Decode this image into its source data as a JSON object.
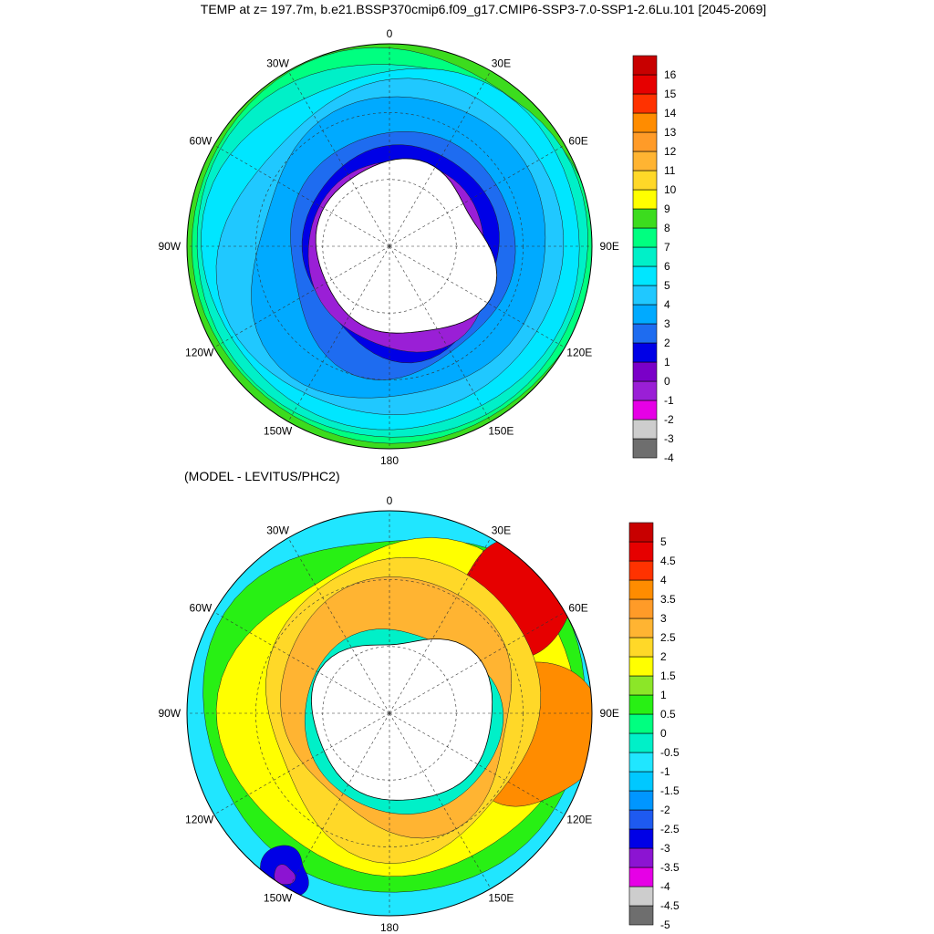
{
  "figure": {
    "title": "TEMP at z= 197.7m, b.e21.BSSP370cmip6.f09_g17.CMIP6-SSP3-7.0-SSP1-2.6Lu.101 [2045-2069]",
    "subtitle": "(MODEL - LEVITUS/PHC2)"
  },
  "chart_data": [
    {
      "type": "heatmap",
      "projection": "south-polar-stereographic",
      "variable": "TEMP",
      "depth": "z= 197.7m",
      "period": "[2045-2069]",
      "longitude_labels": [
        "0",
        "30E",
        "60E",
        "90E",
        "120E",
        "150E",
        "180",
        "150W",
        "120W",
        "90W",
        "60W",
        "30W"
      ],
      "colorbar": {
        "levels": [
          "-4",
          "-3",
          "-2",
          "-1",
          "0",
          "1",
          "2",
          "3",
          "4",
          "5",
          "6",
          "7",
          "8",
          "9",
          "10",
          "11",
          "12",
          "13",
          "14",
          "15",
          "16"
        ],
        "colors": [
          "#6e6e6e",
          "#cdcdcd",
          "#e600e6",
          "#9a1fd6",
          "#7a00c8",
          "#0000e6",
          "#1e6cf0",
          "#00aaff",
          "#20c8ff",
          "#00e6ff",
          "#00f0c8",
          "#00ff80",
          "#3cdc1e",
          "#ffff00",
          "#ffd828",
          "#ffb432",
          "#ff9b28",
          "#ff8c00",
          "#ff3200",
          "#e60000",
          "#c80000"
        ]
      },
      "regions": [
        {
          "name": "continent",
          "color": "#ffffff"
        },
        {
          "name": "shelf",
          "color": "#0000e6"
        },
        {
          "name": "shelf-cold",
          "color": "#9a1fd6"
        },
        {
          "name": "ring-2",
          "color": "#1e6cf0"
        },
        {
          "name": "ring-3",
          "color": "#00aaff"
        },
        {
          "name": "ring-4",
          "color": "#20c8ff"
        },
        {
          "name": "ring-5",
          "color": "#00e6ff"
        },
        {
          "name": "ring-6",
          "color": "#00f0c8"
        },
        {
          "name": "ring-7",
          "color": "#00ff80"
        },
        {
          "name": "ring-8",
          "color": "#3cdc1e"
        }
      ]
    },
    {
      "type": "heatmap",
      "projection": "south-polar-stereographic",
      "variable": "TEMP difference",
      "longitude_labels": [
        "0",
        "30E",
        "60E",
        "90E",
        "120E",
        "150E",
        "180",
        "150W",
        "120W",
        "90W",
        "60W",
        "30W"
      ],
      "colorbar": {
        "levels": [
          "-5",
          "-4.5",
          "-4",
          "-3.5",
          "-3",
          "-2.5",
          "-2",
          "-1.5",
          "-1",
          "-0.5",
          "0",
          "0.5",
          "1",
          "1.5",
          "2",
          "2.5",
          "3",
          "3.5",
          "4",
          "4.5",
          "5"
        ],
        "colors": [
          "#6e6e6e",
          "#cdcdcd",
          "#e600e6",
          "#8c14d2",
          "#0000e6",
          "#1e5af0",
          "#0096ff",
          "#00c8ff",
          "#20e6ff",
          "#00f0c8",
          "#00ff80",
          "#28f014",
          "#8ce628",
          "#ffff00",
          "#ffd828",
          "#ffb432",
          "#ff9b28",
          "#ff8c00",
          "#ff3200",
          "#e60000",
          "#c80000"
        ]
      },
      "regions": [
        {
          "name": "continent",
          "color": "#ffffff"
        },
        {
          "name": "west-cool",
          "color": "#20e6ff"
        },
        {
          "name": "west-green",
          "color": "#28f014"
        },
        {
          "name": "mid-yellow",
          "color": "#ffff00"
        },
        {
          "name": "mid-gold",
          "color": "#ffd828"
        },
        {
          "name": "east-orange",
          "color": "#ffb432"
        },
        {
          "name": "east-hot",
          "color": "#ff8c00"
        },
        {
          "name": "east-red",
          "color": "#e60000"
        },
        {
          "name": "coastal-cyan",
          "color": "#00f0c8"
        },
        {
          "name": "deep-blue",
          "color": "#0000e6"
        },
        {
          "name": "deep-magenta",
          "color": "#8c14d2"
        }
      ]
    }
  ]
}
